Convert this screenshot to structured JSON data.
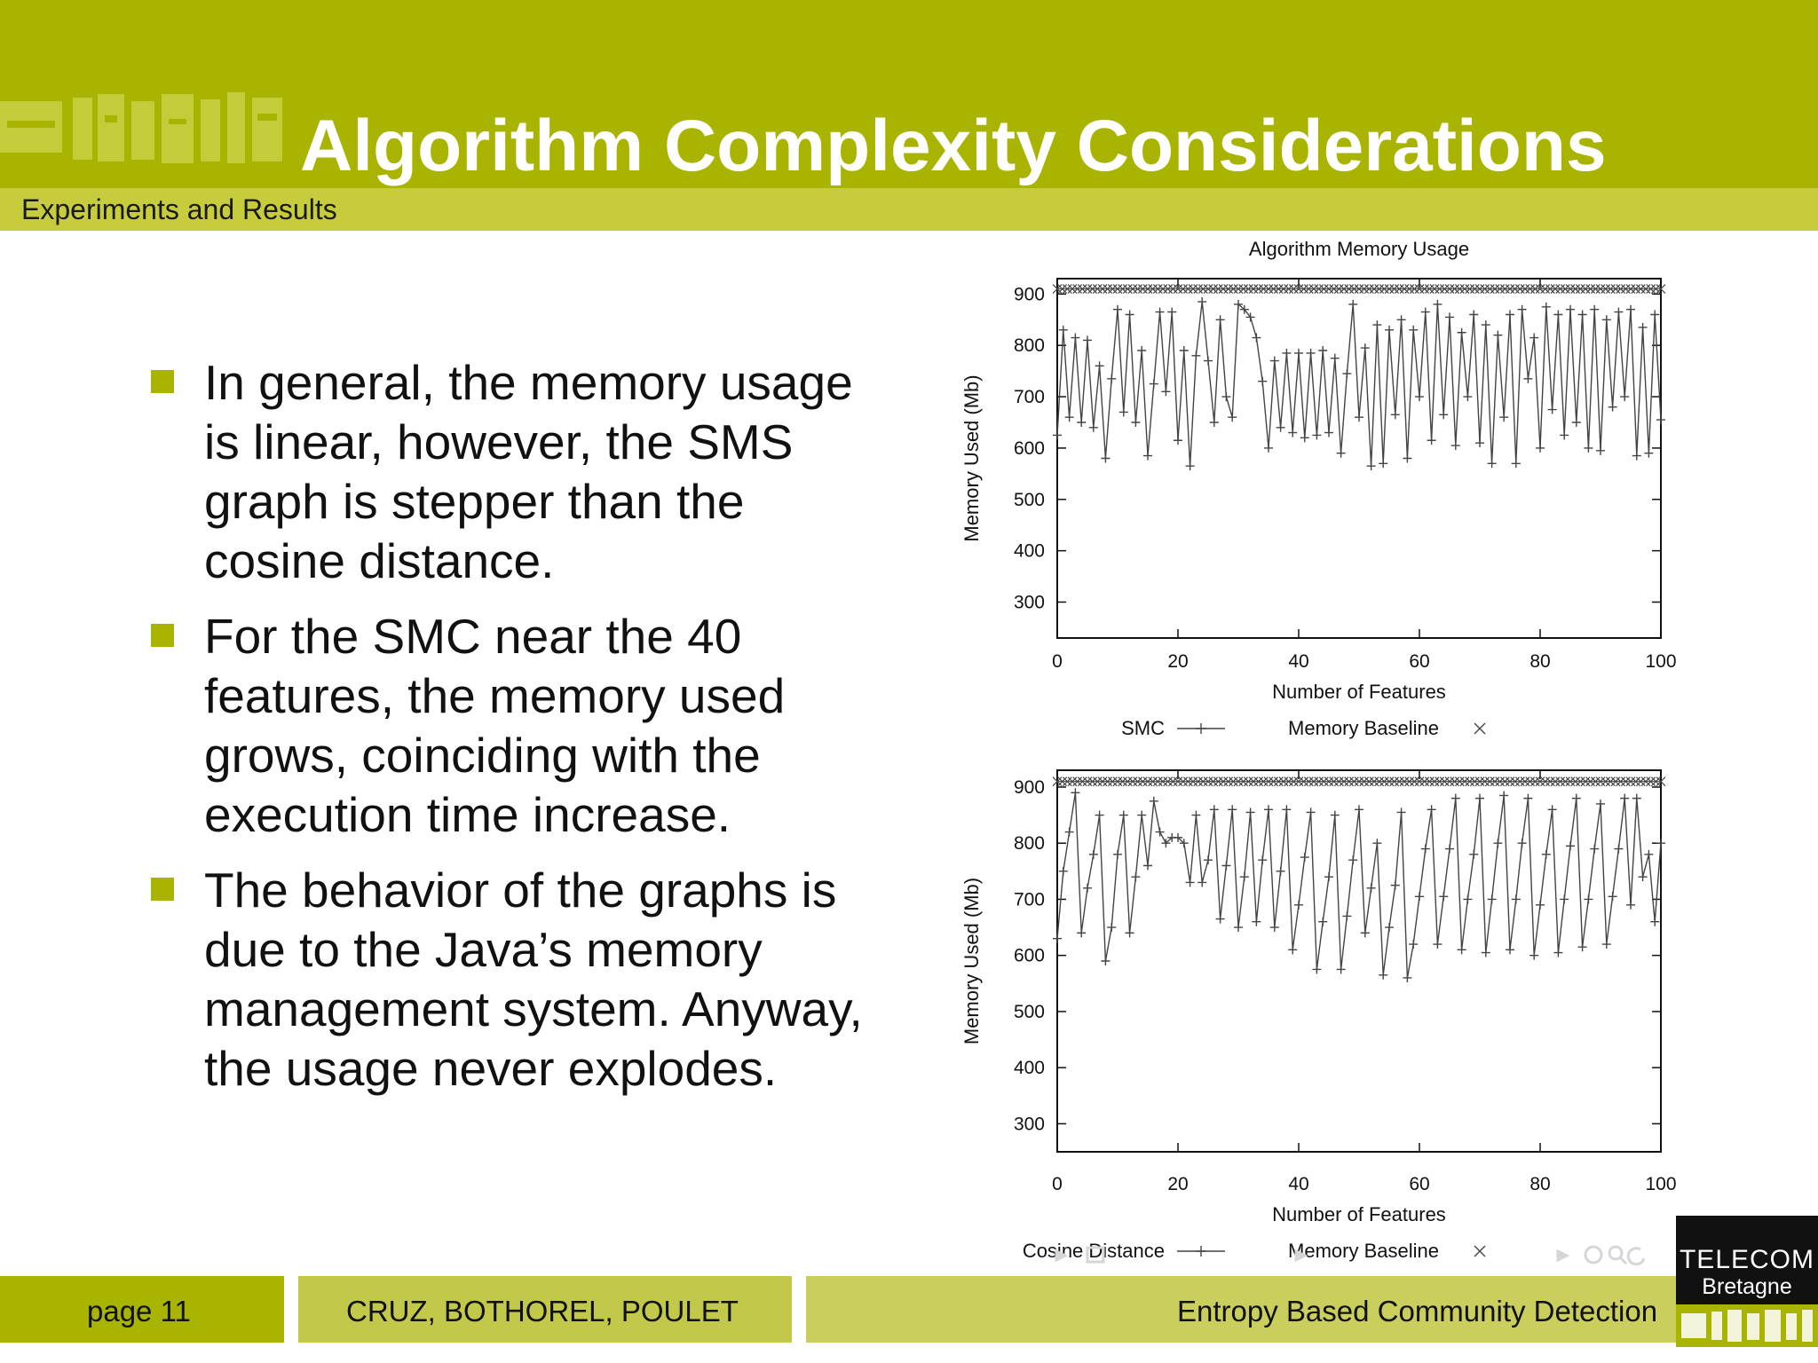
{
  "slide": {
    "title": "Algorithm Complexity Considerations",
    "section": "Experiments and Results",
    "bullets": [
      "In general, the memory usage is linear, however, the SMS graph is stepper than the cosine distance.",
      "For the SMC near the 40 features, the memory used grows, coinciding with the execution time increase.",
      "The behavior of the graphs is due to the Java’s memory management system. Anyway, the usage never explodes."
    ],
    "footer": {
      "page": "page 11",
      "authors": "CRUZ, BOTHOREL, POULET",
      "talk_title": "Entropy Based Community Detection"
    },
    "logo": {
      "line1": "TELECOM",
      "line2": "Bretagne"
    }
  },
  "colors": {
    "header": "#a9b400",
    "subbar": "#c6cc3c",
    "bullet": "#a9b400",
    "line": "#444444"
  },
  "chart_data": [
    {
      "type": "line",
      "title": "Algorithm Memory Usage",
      "xlabel": "Number of Features",
      "ylabel": "Memory Used (Mb)",
      "xlim": [
        0,
        100
      ],
      "ylim": [
        230,
        930
      ],
      "xticks": [
        0,
        20,
        40,
        60,
        80,
        100
      ],
      "yticks": [
        300,
        400,
        500,
        600,
        700,
        800,
        900
      ],
      "legend_position": "bottom",
      "series": [
        {
          "name": "SMC",
          "marker": "plus",
          "x": [
            0,
            1,
            2,
            3,
            4,
            5,
            6,
            7,
            8,
            9,
            10,
            11,
            12,
            13,
            14,
            15,
            16,
            17,
            18,
            19,
            20,
            21,
            22,
            23,
            24,
            25,
            26,
            27,
            28,
            29,
            30,
            31,
            32,
            33,
            34,
            35,
            36,
            37,
            38,
            39,
            40,
            41,
            42,
            43,
            44,
            45,
            46,
            47,
            48,
            49,
            50,
            51,
            52,
            53,
            54,
            55,
            56,
            57,
            58,
            59,
            60,
            61,
            62,
            63,
            64,
            65,
            66,
            67,
            68,
            69,
            70,
            71,
            72,
            73,
            74,
            75,
            76,
            77,
            78,
            79,
            80,
            81,
            82,
            83,
            84,
            85,
            86,
            87,
            88,
            89,
            90,
            91,
            92,
            93,
            94,
            95,
            96,
            97,
            98,
            99,
            100
          ],
          "values": [
            625,
            830,
            660,
            815,
            650,
            810,
            640,
            760,
            580,
            735,
            870,
            670,
            860,
            650,
            790,
            585,
            725,
            865,
            710,
            865,
            615,
            790,
            565,
            780,
            885,
            770,
            650,
            850,
            700,
            660,
            880,
            870,
            855,
            815,
            730,
            600,
            770,
            640,
            785,
            630,
            785,
            620,
            785,
            625,
            790,
            630,
            775,
            590,
            745,
            880,
            660,
            795,
            565,
            840,
            570,
            830,
            665,
            850,
            580,
            830,
            700,
            865,
            615,
            880,
            665,
            855,
            605,
            825,
            700,
            860,
            610,
            840,
            570,
            820,
            660,
            860,
            570,
            870,
            735,
            815,
            600,
            875,
            675,
            860,
            625,
            870,
            650,
            860,
            600,
            870,
            595,
            850,
            680,
            865,
            700,
            870,
            585,
            835,
            590,
            860,
            655
          ]
        },
        {
          "name": "Memory Baseline",
          "marker": "cross",
          "x": [
            0,
            100
          ],
          "values": [
            910,
            910
          ],
          "dense_markers": true
        }
      ]
    },
    {
      "type": "line",
      "title": "",
      "xlabel": "Number of Features",
      "ylabel": "Memory Used (Mb)",
      "xlim": [
        0,
        100
      ],
      "ylim": [
        250,
        930
      ],
      "xticks": [
        0,
        20,
        40,
        60,
        80,
        100
      ],
      "yticks": [
        300,
        400,
        500,
        600,
        700,
        800,
        900
      ],
      "legend_position": "bottom",
      "series": [
        {
          "name": "Cosine Distance",
          "marker": "plus",
          "x": [
            0,
            1,
            2,
            3,
            4,
            5,
            6,
            7,
            8,
            9,
            10,
            11,
            12,
            13,
            14,
            15,
            16,
            17,
            18,
            19,
            20,
            21,
            22,
            23,
            24,
            25,
            26,
            27,
            28,
            29,
            30,
            31,
            32,
            33,
            34,
            35,
            36,
            37,
            38,
            39,
            40,
            41,
            42,
            43,
            44,
            45,
            46,
            47,
            48,
            49,
            50,
            51,
            52,
            53,
            54,
            55,
            56,
            57,
            58,
            59,
            60,
            61,
            62,
            63,
            64,
            65,
            66,
            67,
            68,
            69,
            70,
            71,
            72,
            73,
            74,
            75,
            76,
            77,
            78,
            79,
            80,
            81,
            82,
            83,
            84,
            85,
            86,
            87,
            88,
            89,
            90,
            91,
            92,
            93,
            94,
            95,
            96,
            97,
            98,
            99,
            100
          ],
          "values": [
            630,
            750,
            820,
            890,
            640,
            720,
            780,
            850,
            590,
            650,
            780,
            850,
            640,
            740,
            850,
            760,
            875,
            820,
            800,
            810,
            810,
            800,
            730,
            850,
            730,
            770,
            860,
            665,
            760,
            860,
            650,
            740,
            855,
            660,
            770,
            860,
            650,
            750,
            860,
            610,
            690,
            775,
            855,
            575,
            660,
            740,
            850,
            575,
            670,
            770,
            860,
            640,
            720,
            800,
            565,
            650,
            725,
            855,
            560,
            620,
            705,
            790,
            860,
            620,
            705,
            790,
            880,
            610,
            700,
            780,
            880,
            605,
            700,
            800,
            885,
            610,
            700,
            800,
            880,
            600,
            690,
            780,
            860,
            605,
            700,
            795,
            880,
            615,
            700,
            790,
            870,
            620,
            705,
            790,
            880,
            690,
            880,
            740,
            780,
            660,
            800
          ]
        },
        {
          "name": "Memory Baseline",
          "marker": "cross",
          "x": [
            0,
            100
          ],
          "values": [
            910,
            910
          ],
          "dense_markers": true
        }
      ]
    }
  ]
}
